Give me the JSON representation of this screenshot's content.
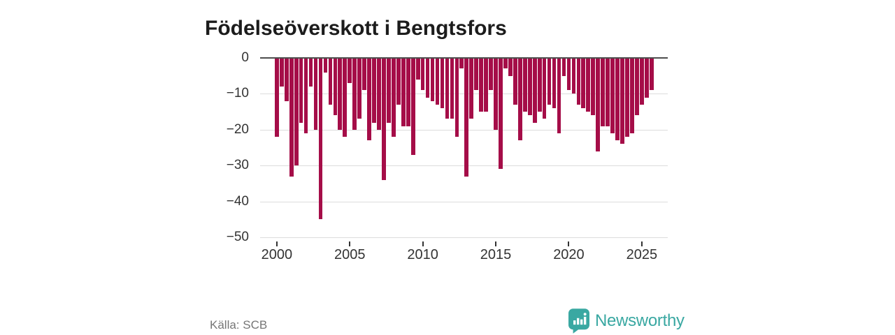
{
  "title": "Födelseöverskott i Bengtsfors",
  "footer": {
    "source": "Källa: SCB"
  },
  "branding": {
    "wordmark": "Newsworthy",
    "badge_icon": "newsworthy-bar-chart-badge",
    "color": "#3aa8a2"
  },
  "colors": {
    "bar": "#a50d48",
    "grid": "#dcdcdc",
    "zero_line": "#4d4d4d",
    "axis_text": "#333333",
    "title_text": "#1c1c1c",
    "source_text": "#767676",
    "background": "#ffffff"
  },
  "chart_data": {
    "type": "bar",
    "title": "Födelseöverskott i Bengtsfors",
    "xlabel": "",
    "ylabel": "",
    "ylim": [
      -50,
      0
    ],
    "grid": true,
    "legend_position": "none",
    "y_ticks": [
      0,
      -10,
      -20,
      -30,
      -40,
      -50
    ],
    "y_tick_labels": [
      "0",
      "−10",
      "−20",
      "−30",
      "−40",
      "−50"
    ],
    "x_tick_labels": [
      "2000",
      "2005",
      "2010",
      "2015",
      "2020",
      "2025"
    ],
    "x_tick_indices": [
      0,
      15,
      30,
      45,
      60,
      75
    ],
    "start_year": 2000,
    "periods_per_year": 3,
    "bar_color": "#a50d48",
    "values": [
      -22,
      -8,
      -12,
      -33,
      -30,
      -18,
      -21,
      -8,
      -20,
      -45,
      -4,
      -13,
      -16,
      -20,
      -22,
      -7,
      -20,
      -17,
      -9,
      -23,
      -18,
      -20,
      -34,
      -18,
      -22,
      -13,
      -19,
      -19,
      -27,
      -6,
      -9,
      -11,
      -12,
      -13,
      -14,
      -17,
      -17,
      -22,
      -3,
      -33,
      -17,
      -9,
      -15,
      -15,
      -9,
      -20,
      -31,
      -3,
      -5,
      -13,
      -23,
      -15,
      -16,
      -18,
      -15,
      -17,
      -13,
      -14,
      -21,
      -5,
      -9,
      -10,
      -13,
      -14,
      -15,
      -16,
      -26,
      -19,
      -19,
      -21,
      -23,
      -24,
      -22,
      -21,
      -16,
      -13,
      -11,
      -9
    ]
  }
}
